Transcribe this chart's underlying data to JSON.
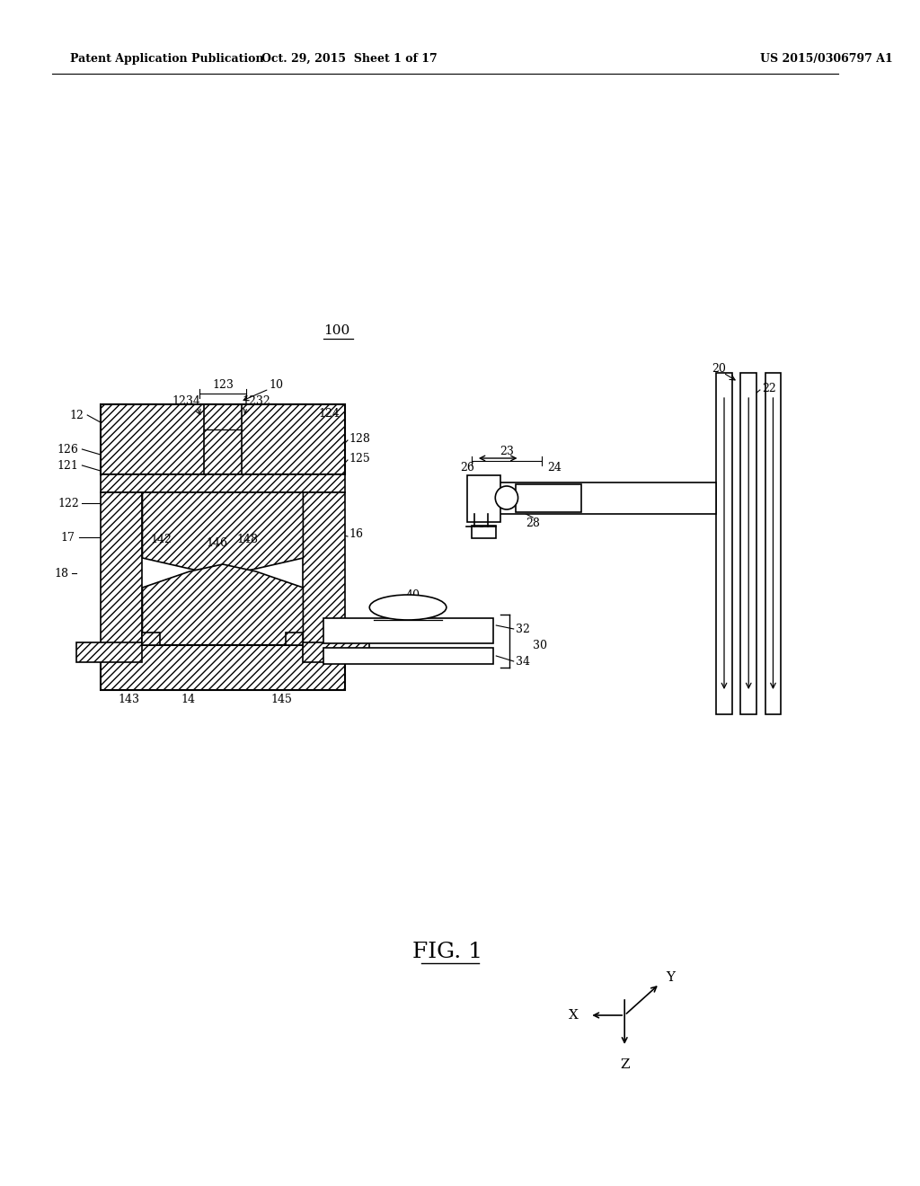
{
  "background_color": "#ffffff",
  "header_left": "Patent Application Publication",
  "header_center": "Oct. 29, 2015  Sheet 1 of 17",
  "header_right": "US 2015/0306797 A1",
  "figure_label": "FIG. 1",
  "diagram_label": "100"
}
